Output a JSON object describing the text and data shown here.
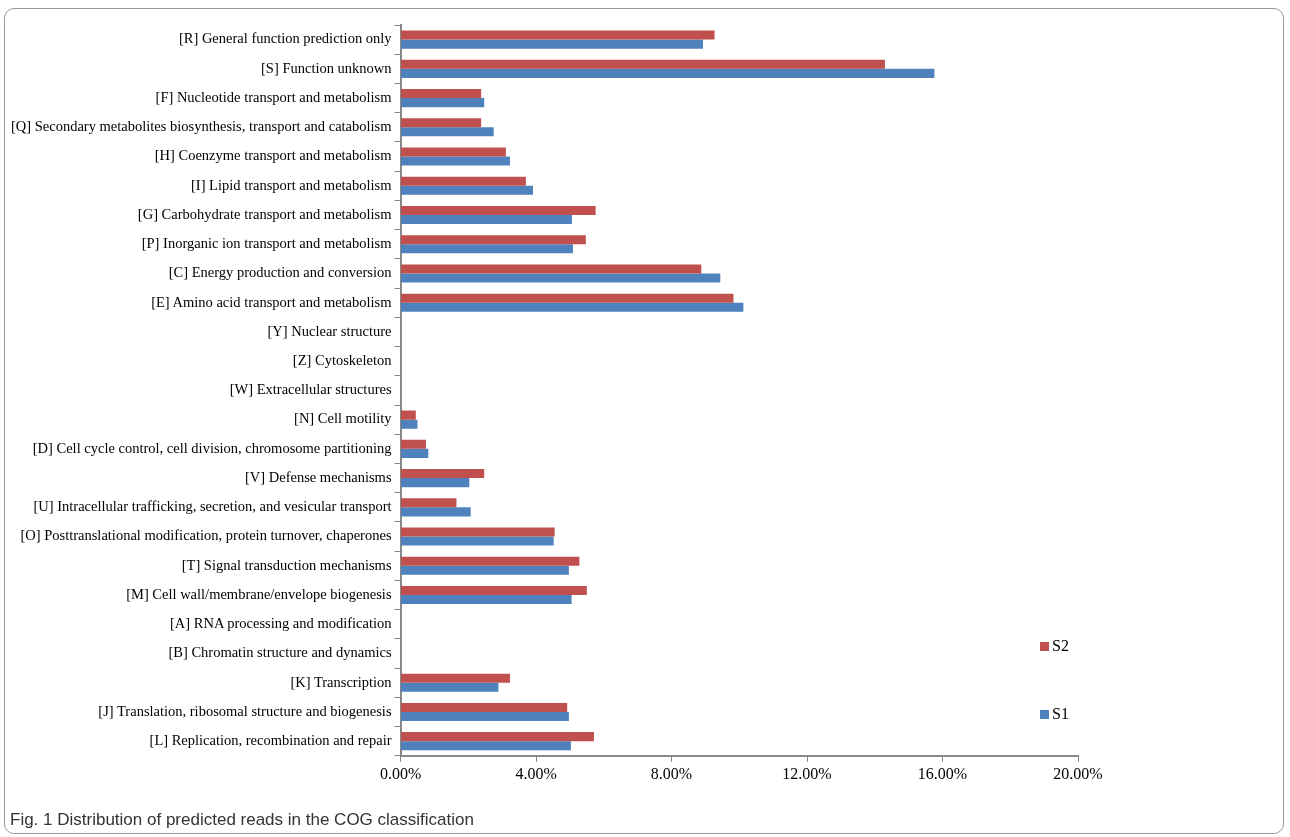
{
  "chart_data": {
    "type": "bar",
    "orientation": "horizontal",
    "annotations": [
      "Fig. 1 Distribution of predicted reads in the COG classification"
    ],
    "categories": [
      "[R] General function prediction only",
      "[S] Function unknown",
      "[F] Nucleotide transport and metabolism",
      "[Q] Secondary metabolites biosynthesis, transport and catabolism",
      "[H] Coenzyme transport and metabolism",
      "[I] Lipid transport and metabolism",
      "[G] Carbohydrate transport and metabolism",
      "[P] Inorganic ion transport and metabolism",
      "[C] Energy production and conversion",
      "[E] Amino acid transport and metabolism",
      "[Y] Nuclear structure",
      "[Z] Cytoskeleton",
      "[W] Extracellular structures",
      "[N] Cell motility",
      "[D] Cell cycle control, cell division, chromosome partitioning",
      "[V] Defense mechanisms",
      "[U] Intracellular trafficking, secretion, and vesicular transport",
      "[O] Posttranslational modification, protein turnover, chaperones",
      "[T] Signal transduction mechanisms",
      "[M] Cell wall/membrane/envelope biogenesis",
      "[A] RNA processing and modification",
      "[B] Chromatin structure and dynamics",
      "[K] Transcription",
      "[J] Translation, ribosomal structure and biogenesis",
      "[L] Replication, recombination and repair"
    ],
    "series": [
      {
        "name": "S2",
        "color": "#c0504d",
        "values": [
          9.27,
          14.3,
          2.38,
          2.38,
          3.11,
          3.7,
          5.76,
          5.47,
          8.88,
          9.83,
          0,
          0,
          0,
          0.45,
          0.75,
          2.47,
          1.65,
          4.55,
          5.28,
          5.5,
          0,
          null,
          3.23,
          4.92,
          5.71
        ]
      },
      {
        "name": "S1",
        "color": "#4f81bd",
        "values": [
          8.93,
          15.76,
          2.47,
          2.75,
          3.23,
          3.91,
          5.06,
          5.09,
          9.44,
          10.12,
          0,
          0,
          0,
          0.5,
          0.82,
          2.03,
          2.07,
          4.52,
          4.97,
          5.05,
          0,
          null,
          2.89,
          4.97,
          5.03
        ]
      }
    ],
    "xlim": [
      0,
      20
    ],
    "xticks": [
      {
        "value": 0,
        "label": "0.00%"
      },
      {
        "value": 4,
        "label": "4.00%"
      },
      {
        "value": 8,
        "label": "8.00%"
      },
      {
        "value": 12,
        "label": "12.00%"
      },
      {
        "value": 16,
        "label": "16.00%"
      },
      {
        "value": 20,
        "label": "20.00%"
      }
    ],
    "grid": false,
    "legend": "right"
  }
}
